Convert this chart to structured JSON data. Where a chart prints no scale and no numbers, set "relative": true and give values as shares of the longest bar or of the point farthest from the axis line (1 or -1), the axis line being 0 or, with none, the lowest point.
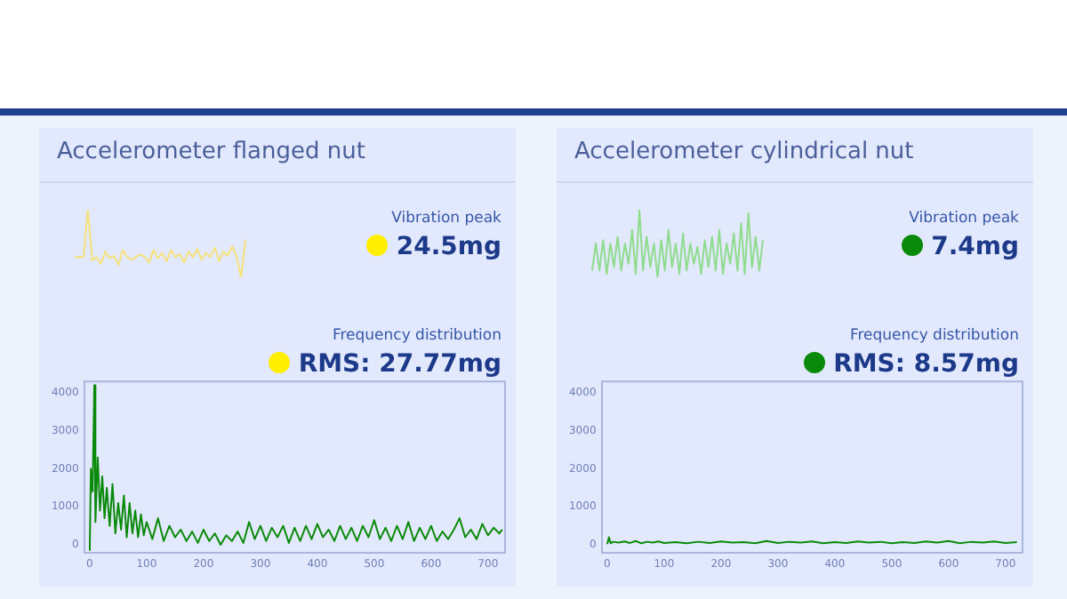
{
  "chart_data": [
    {
      "type": "line",
      "title": "Accelerometer flanged nut",
      "annotations": [
        "Vibration peak",
        "24.5mg"
      ],
      "relative": true,
      "categories": [
        null,
        null,
        null,
        null,
        null,
        null,
        null,
        null,
        null,
        null,
        null,
        null,
        null,
        null,
        null,
        null,
        null,
        null,
        null,
        null,
        null,
        null,
        null,
        null,
        null,
        null,
        null,
        null,
        null,
        null,
        null,
        null,
        null,
        null,
        null,
        null,
        null,
        null,
        null,
        null
      ],
      "series": [
        {
          "color": "#f5e27a",
          "values": [
            0.3,
            0.3,
            0.3,
            1,
            0.25,
            0.3,
            0.2,
            0.38,
            0.28,
            0.32,
            0.18,
            0.4,
            0.3,
            0.26,
            0.3,
            0.34,
            0.3,
            0.22,
            0.4,
            0.28,
            0.36,
            0.24,
            0.4,
            0.3,
            0.34,
            0.22,
            0.38,
            0.3,
            0.42,
            0.26,
            0.36,
            0.3,
            0.44,
            0.24,
            0.38,
            0.32,
            0.46,
            0.3,
            0,
            0.55
          ]
        }
      ]
    },
    {
      "type": "line",
      "title": "Frequency distribution",
      "subtitle": "RMS: 27.77mg",
      "grid": false,
      "xlim": [
        -10,
        730
      ],
      "ylim": [
        -200,
        4300
      ],
      "xticks": [
        0,
        100,
        200,
        300,
        400,
        500,
        600,
        700
      ],
      "yticks": [
        0,
        1000,
        2000,
        3000,
        4000
      ],
      "x": [
        0,
        2,
        5,
        8,
        10,
        14,
        18,
        22,
        26,
        30,
        35,
        40,
        45,
        50,
        55,
        60,
        65,
        70,
        75,
        80,
        85,
        90,
        95,
        100,
        110,
        120,
        130,
        140,
        150,
        160,
        170,
        180,
        190,
        200,
        210,
        220,
        230,
        240,
        250,
        260,
        270,
        280,
        290,
        300,
        310,
        320,
        330,
        340,
        350,
        360,
        370,
        380,
        390,
        400,
        410,
        420,
        430,
        440,
        450,
        460,
        470,
        480,
        490,
        500,
        510,
        520,
        530,
        540,
        550,
        560,
        570,
        580,
        590,
        600,
        610,
        620,
        630,
        640,
        650,
        660,
        670,
        680,
        690,
        700,
        710,
        720,
        725
      ],
      "series": [
        {
          "color": "#0a8a0a",
          "values": [
            -150,
            2000,
            1400,
            4200,
            600,
            2300,
            900,
            1800,
            700,
            1500,
            500,
            1600,
            300,
            1100,
            400,
            1300,
            200,
            1100,
            300,
            900,
            200,
            800,
            250,
            600,
            150,
            700,
            100,
            500,
            200,
            400,
            100,
            350,
            50,
            400,
            100,
            300,
            0,
            250,
            100,
            350,
            50,
            600,
            150,
            500,
            100,
            450,
            200,
            500,
            50,
            450,
            100,
            500,
            150,
            550,
            200,
            400,
            100,
            500,
            150,
            450,
            100,
            500,
            200,
            650,
            150,
            450,
            100,
            500,
            150,
            600,
            100,
            450,
            150,
            500,
            100,
            350,
            150,
            400,
            700,
            200,
            400,
            150,
            550,
            250,
            450,
            300,
            400
          ]
        }
      ]
    },
    {
      "type": "line",
      "title": "Accelerometer cylindrical nut",
      "annotations": [
        "Vibration peak",
        "7.4mg"
      ],
      "relative": true,
      "categories": [
        null,
        null,
        null,
        null,
        null,
        null,
        null,
        null,
        null,
        null,
        null,
        null,
        null,
        null,
        null,
        null,
        null,
        null,
        null,
        null,
        null,
        null,
        null,
        null,
        null,
        null,
        null,
        null,
        null,
        null,
        null,
        null,
        null,
        null,
        null,
        null,
        null,
        null,
        null,
        null,
        null,
        null,
        null,
        null,
        null,
        null,
        null,
        null
      ],
      "series": [
        {
          "color": "#8fdc8f",
          "values": [
            0.1,
            0.5,
            0.1,
            0.55,
            0.05,
            0.5,
            0.15,
            0.6,
            0.1,
            0.5,
            0.2,
            0.7,
            0.05,
            1,
            0.1,
            0.6,
            0.15,
            0.5,
            0,
            0.55,
            0.1,
            0.7,
            0.15,
            0.5,
            0.05,
            0.65,
            0.1,
            0.5,
            0.2,
            0.45,
            0.05,
            0.55,
            0.15,
            0.6,
            0.1,
            0.7,
            0.05,
            0.5,
            0.2,
            0.65,
            0.1,
            0.8,
            0.05,
            0.95,
            0.15,
            0.6,
            0.1,
            0.55
          ]
        }
      ]
    },
    {
      "type": "line",
      "title": "Frequency distribution",
      "subtitle": "RMS: 8.57mg",
      "grid": false,
      "xlim": [
        -10,
        730
      ],
      "ylim": [
        -200,
        4300
      ],
      "xticks": [
        0,
        100,
        200,
        300,
        400,
        500,
        600,
        700
      ],
      "yticks": [
        0,
        1000,
        2000,
        3000,
        4000
      ],
      "x": [
        0,
        3,
        6,
        10,
        20,
        30,
        40,
        50,
        60,
        70,
        80,
        90,
        100,
        120,
        140,
        160,
        180,
        200,
        220,
        240,
        260,
        280,
        300,
        320,
        340,
        360,
        380,
        400,
        420,
        440,
        460,
        480,
        500,
        520,
        540,
        560,
        580,
        600,
        620,
        640,
        660,
        680,
        700,
        720
      ],
      "series": [
        {
          "color": "#0a8a0a",
          "values": [
            20,
            200,
            40,
            80,
            60,
            90,
            50,
            100,
            40,
            80,
            60,
            90,
            50,
            70,
            40,
            80,
            50,
            90,
            60,
            70,
            40,
            100,
            50,
            80,
            60,
            90,
            40,
            70,
            50,
            90,
            60,
            80,
            40,
            70,
            50,
            90,
            60,
            100,
            40,
            80,
            60,
            90,
            50,
            70
          ]
        }
      ]
    }
  ]
}
